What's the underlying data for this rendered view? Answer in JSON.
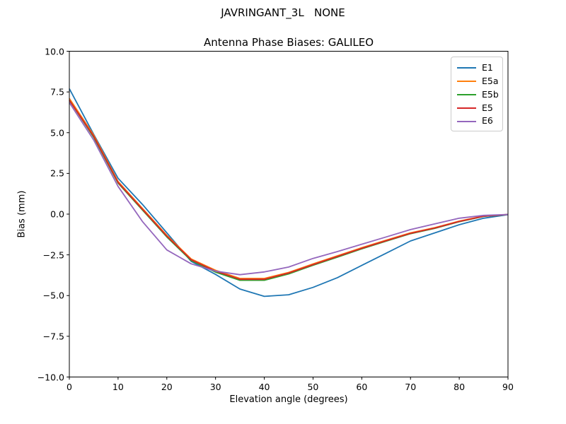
{
  "figure": {
    "background": "#ffffff",
    "spine_color": "#000000"
  },
  "chart_data": {
    "type": "line",
    "suptitle": "JAVRINGANT_3L   NONE",
    "title": "Antenna Phase Biases: GALILEO",
    "xlabel": "Elevation angle (degrees)",
    "ylabel": "Bias (mm)",
    "xlim": [
      0,
      90
    ],
    "ylim": [
      -10,
      10
    ],
    "grid": false,
    "legend_position": "upper right",
    "xticks": [
      {
        "v": 0,
        "label": "0"
      },
      {
        "v": 10,
        "label": "10"
      },
      {
        "v": 20,
        "label": "20"
      },
      {
        "v": 30,
        "label": "30"
      },
      {
        "v": 40,
        "label": "40"
      },
      {
        "v": 50,
        "label": "50"
      },
      {
        "v": 60,
        "label": "60"
      },
      {
        "v": 70,
        "label": "70"
      },
      {
        "v": 80,
        "label": "80"
      },
      {
        "v": 90,
        "label": "90"
      }
    ],
    "yticks": [
      {
        "v": 10,
        "label": "10.0"
      },
      {
        "v": 7.5,
        "label": "7.5"
      },
      {
        "v": 5,
        "label": "5.0"
      },
      {
        "v": 2.5,
        "label": "2.5"
      },
      {
        "v": 0,
        "label": "0.0"
      },
      {
        "v": -2.5,
        "label": "−2.5"
      },
      {
        "v": -5,
        "label": "−5.0"
      },
      {
        "v": -7.5,
        "label": "−7.5"
      },
      {
        "v": -10,
        "label": "−10.0"
      }
    ],
    "x": [
      0,
      5,
      10,
      15,
      20,
      25,
      30,
      35,
      40,
      45,
      50,
      55,
      60,
      65,
      70,
      75,
      80,
      85,
      90
    ],
    "series": [
      {
        "name": "E1",
        "color": "#1f77b4",
        "values": [
          7.7,
          4.9,
          2.2,
          0.6,
          -1.15,
          -2.9,
          -3.7,
          -4.6,
          -5.05,
          -4.95,
          -4.5,
          -3.9,
          -3.15,
          -2.4,
          -1.65,
          -1.15,
          -0.65,
          -0.25,
          -0.03
        ]
      },
      {
        "name": "E5a",
        "color": "#ff7f0e",
        "values": [
          7.1,
          4.85,
          2.0,
          0.35,
          -1.3,
          -2.75,
          -3.45,
          -3.95,
          -3.95,
          -3.58,
          -3.06,
          -2.56,
          -2.06,
          -1.6,
          -1.15,
          -0.83,
          -0.43,
          -0.12,
          -0.02
        ]
      },
      {
        "name": "E5b",
        "color": "#2ca02c",
        "values": [
          7.0,
          4.72,
          1.9,
          0.25,
          -1.4,
          -2.85,
          -3.56,
          -4.06,
          -4.06,
          -3.67,
          -3.14,
          -2.64,
          -2.13,
          -1.66,
          -1.2,
          -0.87,
          -0.47,
          -0.14,
          -0.02
        ]
      },
      {
        "name": "E5",
        "color": "#d62728",
        "values": [
          7.0,
          4.78,
          1.95,
          0.3,
          -1.35,
          -2.8,
          -3.5,
          -4.0,
          -4.0,
          -3.62,
          -3.1,
          -2.6,
          -2.1,
          -1.63,
          -1.18,
          -0.85,
          -0.45,
          -0.13,
          -0.02
        ]
      },
      {
        "name": "E6",
        "color": "#9467bd",
        "values": [
          6.85,
          4.55,
          1.7,
          -0.45,
          -2.2,
          -3.05,
          -3.5,
          -3.72,
          -3.55,
          -3.25,
          -2.72,
          -2.3,
          -1.85,
          -1.4,
          -0.95,
          -0.6,
          -0.25,
          -0.08,
          -0.02
        ]
      }
    ]
  }
}
